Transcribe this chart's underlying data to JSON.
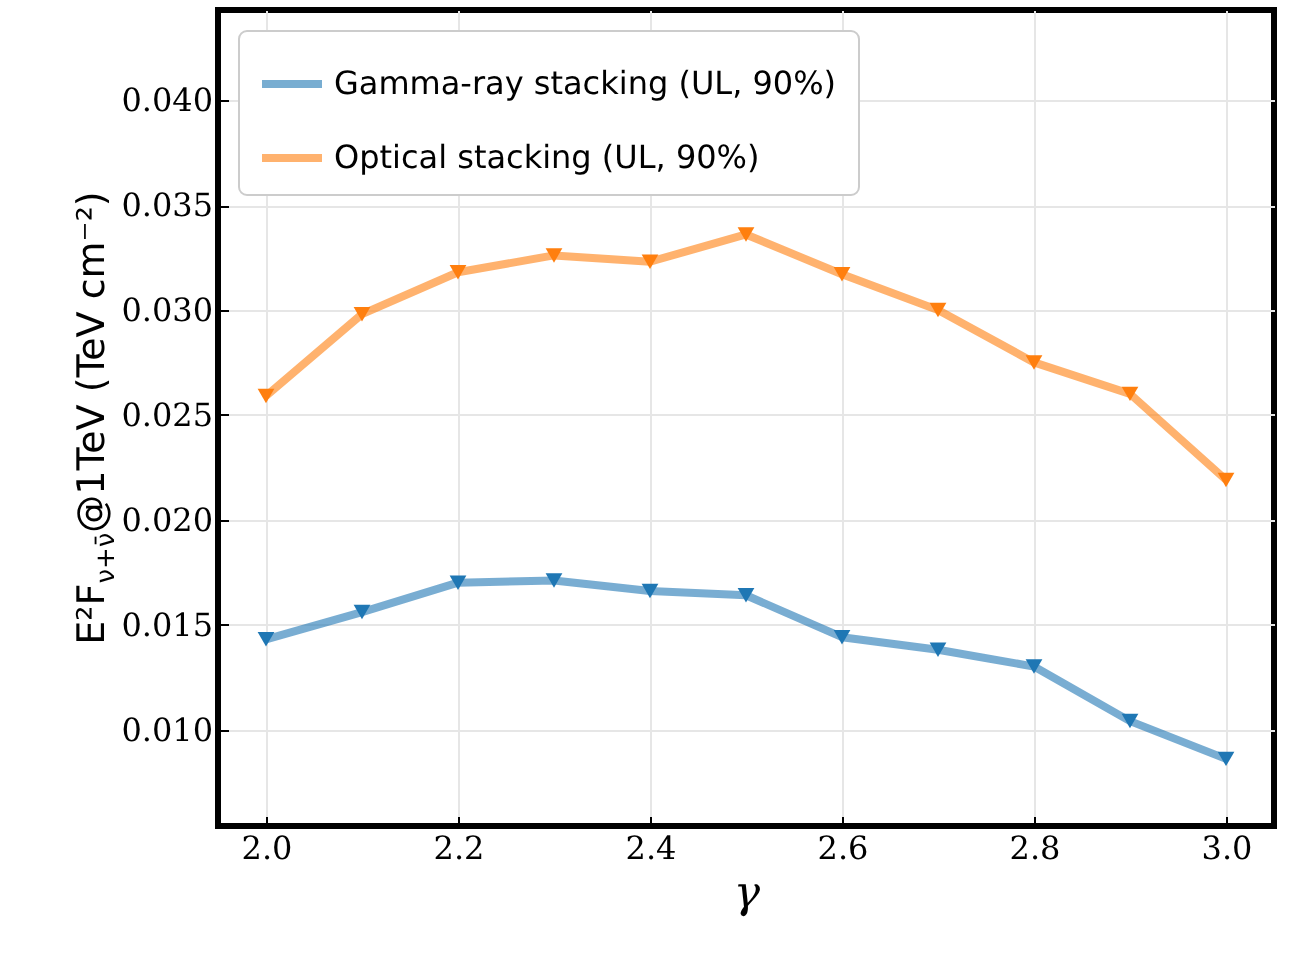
{
  "chart_data": {
    "type": "line",
    "xlabel": "γ",
    "ylabel": "E²F$_{ν+ν̄}$@1TeV (TeV cm⁻²)",
    "x": [
      2.0,
      2.1,
      2.2,
      2.3,
      2.4,
      2.5,
      2.6,
      2.7,
      2.8,
      2.9,
      3.0
    ],
    "series": [
      {
        "name": "Gamma-ray stacking (UL, 90%)",
        "color": "#1f77b4",
        "values": [
          0.0143,
          0.0156,
          0.017,
          0.0171,
          0.0166,
          0.0164,
          0.0144,
          0.0138,
          0.013,
          0.0104,
          0.0086
        ]
      },
      {
        "name": "Optical stacking (UL, 90%)",
        "color": "#ff7f0e",
        "values": [
          0.0259,
          0.0298,
          0.0318,
          0.0326,
          0.0323,
          0.0336,
          0.0317,
          0.03,
          0.0275,
          0.026,
          0.0219
        ]
      }
    ],
    "xlim": [
      1.95,
      3.05
    ],
    "xticks": [
      {
        "value": 2,
        "label": "2.0"
      },
      2.2,
      2.4,
      2.6,
      2.8,
      {
        "value": 3,
        "label": "3.0"
      }
    ],
    "ylim": [
      0.0054,
      0.0443
    ],
    "yticks": [
      {
        "value": 0.01,
        "label": "0.010"
      },
      0.015,
      {
        "value": 0.02,
        "label": "0.020"
      },
      0.025,
      {
        "value": 0.03,
        "label": "0.030"
      },
      0.035,
      {
        "value": 0.04,
        "label": "0.040"
      }
    ],
    "grid": true,
    "legend": "top left",
    "marker": "triangle",
    "line_style": "solid"
  }
}
